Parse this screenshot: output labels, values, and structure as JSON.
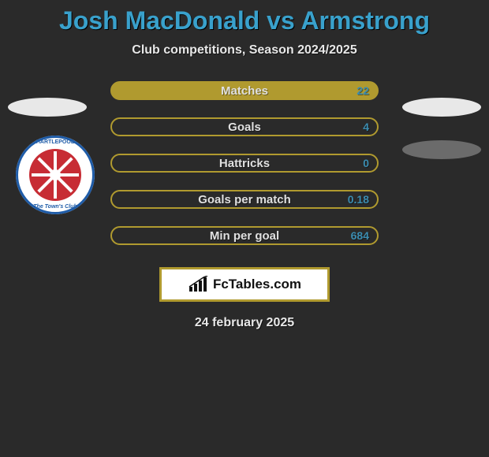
{
  "title": "Josh MacDonald vs Armstrong",
  "subtitle": "Club competitions, Season 2024/2025",
  "date": "24 february 2025",
  "background_color": "#2a2a2a",
  "title_color": "#39a1cc",
  "bars": [
    {
      "label": "Matches",
      "value": "22",
      "fill": "#b09a2f",
      "border": "#b09a2f",
      "value_color": "#3b8cb0"
    },
    {
      "label": "Goals",
      "value": "4",
      "fill": "none",
      "border": "#b09a2f",
      "value_color": "#3b8cb0"
    },
    {
      "label": "Hattricks",
      "value": "0",
      "fill": "none",
      "border": "#b09a2f",
      "value_color": "#3b8cb0"
    },
    {
      "label": "Goals per match",
      "value": "0.18",
      "fill": "none",
      "border": "#b09a2f",
      "value_color": "#3b8cb0"
    },
    {
      "label": "Min per goal",
      "value": "684",
      "fill": "none",
      "border": "#b09a2f",
      "value_color": "#3b8cb0"
    }
  ],
  "crest": {
    "top_text": "HARTLEPOOL",
    "bottom_text": "The Town's Club",
    "ring_color": "#1f5ca8",
    "wheel_color": "#c72c34",
    "spokes": 8
  },
  "logo": {
    "text": "FcTables.com",
    "border_color": "#b09a2f"
  }
}
